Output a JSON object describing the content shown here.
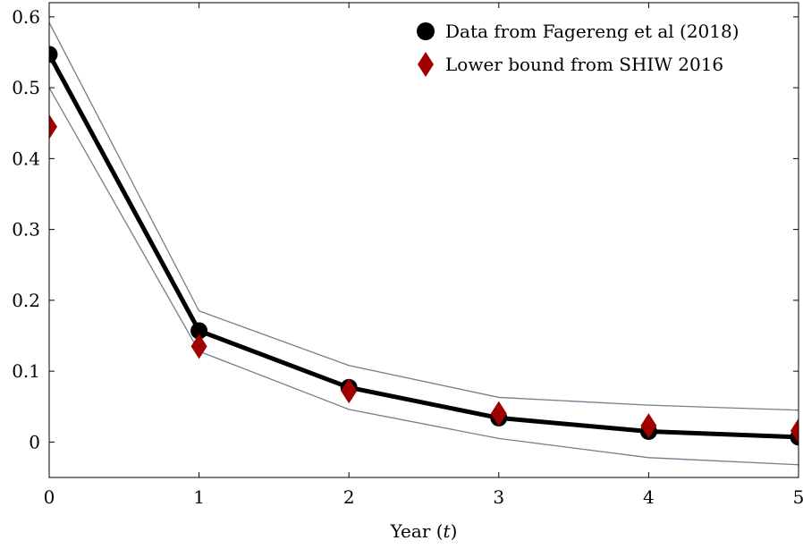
{
  "chart_data": {
    "type": "line",
    "xlabel": "Year (t)",
    "xlabel_prefix": "Year (",
    "xlabel_var": "t",
    "xlabel_suffix": ")",
    "ylabel": "",
    "xlim": [
      0,
      5
    ],
    "ylim": [
      -0.05,
      0.62
    ],
    "xticks": [
      0,
      1,
      2,
      3,
      4,
      5
    ],
    "yticks": [
      0,
      0.1,
      0.2,
      0.3,
      0.4,
      0.5,
      0.6
    ],
    "ytick_labels": [
      "0",
      "0.1",
      "0.2",
      "0.3",
      "0.4",
      "0.5",
      "0.6"
    ],
    "xtick_labels": [
      "0",
      "1",
      "2",
      "3",
      "4",
      "5"
    ],
    "legend_position": "top-right",
    "grid": false,
    "series": [
      {
        "name": "Data from Fagereng et al (2018)",
        "x": [
          0,
          1,
          2,
          3,
          4,
          5
        ],
        "y": [
          0.547,
          0.157,
          0.077,
          0.034,
          0.015,
          0.007
        ],
        "marker": "circle",
        "color": "#000000",
        "line": true
      },
      {
        "name": "Lower bound from SHIW 2016",
        "x": [
          0,
          1,
          2,
          3,
          4,
          5
        ],
        "y": [
          0.445,
          0.135,
          0.072,
          0.04,
          0.023,
          0.016
        ],
        "marker": "diamond",
        "color": "#a00000",
        "line": false
      }
    ],
    "bands": {
      "upper": {
        "x": [
          0,
          1,
          2,
          3,
          4,
          5
        ],
        "y": [
          0.592,
          0.185,
          0.108,
          0.063,
          0.052,
          0.045
        ]
      },
      "lower": {
        "x": [
          0,
          1,
          2,
          3,
          4,
          5
        ],
        "y": [
          0.5,
          0.128,
          0.046,
          0.005,
          -0.022,
          -0.032
        ]
      },
      "color": "#6f7f90"
    }
  }
}
